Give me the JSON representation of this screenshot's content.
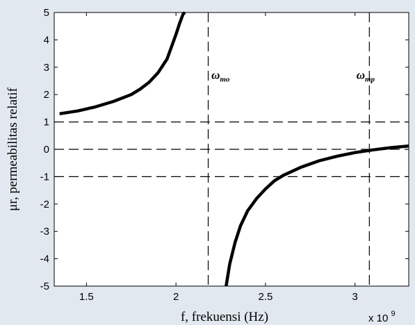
{
  "chart_data": {
    "type": "line",
    "xlabel": "f, frekuensi (Hz)",
    "ylabel": "μr, permeabilitas relatif",
    "x_multiplier": "x 10",
    "x_multiplier_exp": "9",
    "xlim": [
      1.32,
      3.3
    ],
    "ylim": [
      -5,
      5
    ],
    "xticks": [
      "1.5",
      "2",
      "2.5",
      "3"
    ],
    "xtick_values": [
      1.5,
      2,
      2.5,
      3
    ],
    "yticks": [
      "5",
      "4",
      "3",
      "2",
      "1",
      "0",
      "-1",
      "-2",
      "-3",
      "-4",
      "-5"
    ],
    "ytick_values": [
      5,
      4,
      3,
      2,
      1,
      0,
      -1,
      -2,
      -3,
      -4,
      -5
    ],
    "grid": false,
    "series": [
      {
        "values_left_branch": {
          "x": [
            1.35,
            1.45,
            1.55,
            1.65,
            1.75,
            1.8,
            1.85,
            1.9,
            1.95,
            2.0,
            2.02,
            2.04,
            2.05
          ],
          "y": [
            1.3,
            1.4,
            1.55,
            1.75,
            2.0,
            2.2,
            2.45,
            2.8,
            3.3,
            4.2,
            4.6,
            4.95,
            5.0
          ]
        },
        "values_right_branch": {
          "x": [
            2.28,
            2.3,
            2.33,
            2.36,
            2.4,
            2.45,
            2.5,
            2.55,
            2.6,
            2.7,
            2.8,
            2.9,
            3.0,
            3.1,
            3.2,
            3.3
          ],
          "y": [
            -5.0,
            -4.2,
            -3.4,
            -2.8,
            -2.25,
            -1.8,
            -1.45,
            -1.15,
            -0.95,
            -0.65,
            -0.42,
            -0.25,
            -0.12,
            -0.02,
            0.06,
            0.12
          ]
        }
      }
    ],
    "reference_lines": {
      "horizontal": [
        1,
        0,
        -1
      ],
      "vertical": [
        2.18,
        3.08
      ]
    },
    "annotations": [
      {
        "text": "ω",
        "sub": "mo",
        "x": 2.19,
        "y": 2.7
      },
      {
        "text": "ω",
        "sub": "mp",
        "x": 3.0,
        "y": 2.7
      }
    ],
    "colors": {
      "background": "#e2e8ef",
      "plot_area": "#ffffff",
      "line": "#000000"
    }
  }
}
